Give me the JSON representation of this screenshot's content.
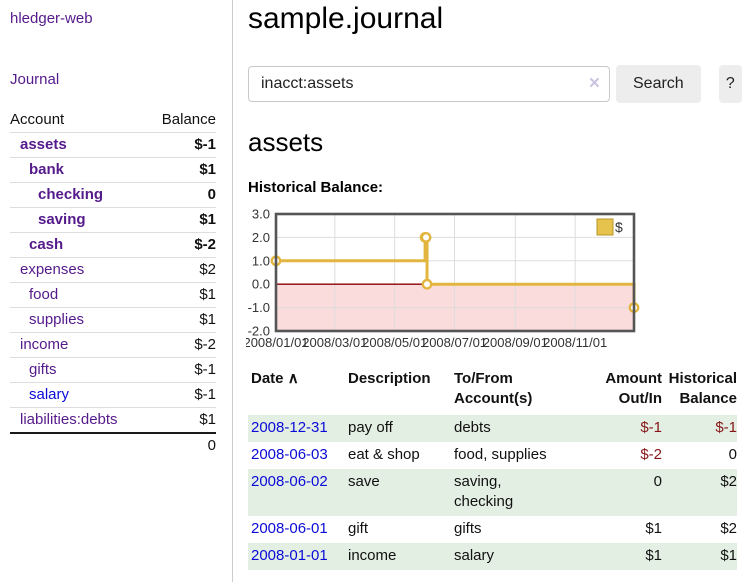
{
  "sidebar": {
    "brand": "hledger-web",
    "journal_link": "Journal",
    "accounts_table": {
      "headers": {
        "account": "Account",
        "balance": "Balance"
      },
      "rows": [
        {
          "name": "assets",
          "level": 1,
          "bold": true,
          "balance": "$-1",
          "balance_tone": "negative",
          "link_tone": "purple"
        },
        {
          "name": "bank",
          "level": 2,
          "bold": true,
          "balance": "$1",
          "balance_tone": "positive",
          "link_tone": "purple"
        },
        {
          "name": "checking",
          "level": 3,
          "bold": true,
          "balance": "0",
          "balance_tone": "positive",
          "link_tone": "purple"
        },
        {
          "name": "saving",
          "level": 3,
          "bold": true,
          "balance": "$1",
          "balance_tone": "positive",
          "link_tone": "purple"
        },
        {
          "name": "cash",
          "level": 2,
          "bold": true,
          "balance": "$-2",
          "balance_tone": "negative",
          "link_tone": "purple"
        },
        {
          "name": "expenses",
          "level": 1,
          "bold": false,
          "balance": "$2",
          "balance_tone": "positive",
          "link_tone": "purple"
        },
        {
          "name": "food",
          "level": 2,
          "bold": false,
          "balance": "$1",
          "balance_tone": "positive",
          "link_tone": "purple"
        },
        {
          "name": "supplies",
          "level": 2,
          "bold": false,
          "balance": "$1",
          "balance_tone": "positive",
          "link_tone": "purple"
        },
        {
          "name": "income",
          "level": 1,
          "bold": false,
          "balance": "$-2",
          "balance_tone": "negative-soft",
          "link_tone": "purple"
        },
        {
          "name": "gifts",
          "level": 2,
          "bold": false,
          "balance": "$-1",
          "balance_tone": "negative-soft",
          "link_tone": "purple"
        },
        {
          "name": "salary",
          "level": 2,
          "bold": false,
          "balance": "$-1",
          "balance_tone": "negative-soft",
          "link_tone": "blue"
        },
        {
          "name": "liabilities:debts",
          "level": 1,
          "bold": false,
          "balance": "$1",
          "balance_tone": "positive",
          "link_tone": "purple"
        }
      ],
      "total": "0"
    }
  },
  "header": {
    "title": "sample.journal"
  },
  "search": {
    "value": "inacct:assets",
    "clear_icon": "×",
    "button_label": "Search",
    "help_label": "?"
  },
  "account_page": {
    "title": "assets",
    "chart_heading": "Historical Balance:"
  },
  "chart_data": {
    "type": "line",
    "step": true,
    "series": [
      {
        "name": "$",
        "color": "#e2b63e",
        "points": [
          [
            "2008-01-01",
            1
          ],
          [
            "2008-06-01",
            2
          ],
          [
            "2008-06-02",
            2
          ],
          [
            "2008-06-03",
            0
          ],
          [
            "2008-12-31",
            -1
          ]
        ]
      }
    ],
    "x_range": [
      "2008-01-01",
      "2008-12-31"
    ],
    "x_ticks": [
      "2008/01/01",
      "2008/03/01",
      "2008/05/01",
      "2008/07/01",
      "2008/09/01",
      "2008/11/01"
    ],
    "y_ticks": [
      3.0,
      2.0,
      1.0,
      0.0,
      -1.0,
      -2.0
    ],
    "ylim": [
      -2,
      3
    ],
    "grid": true,
    "legend": {
      "label": "$",
      "position": "top-right",
      "swatch_color": "#e6c34c"
    },
    "negative_region_fill": "#fbdcdc",
    "zero_line_color": "#8b0000",
    "border_color": "#555555",
    "grid_color": "#dddddd"
  },
  "register_table": {
    "headers": {
      "date": "Date",
      "sort_icon": "∧",
      "description": "Description",
      "tofrom": "To/From\nAccount(s)",
      "amount": "Amount\nOut/In",
      "balance": "Historical\nBalance"
    },
    "rows": [
      {
        "date": "2008-12-31",
        "description": "pay off",
        "accounts": "debts",
        "amount": "$-1",
        "amount_tone": "negative",
        "balance": "$-1",
        "balance_tone": "negative",
        "striped": true
      },
      {
        "date": "2008-06-03",
        "description": "eat & shop",
        "accounts": "food, supplies",
        "amount": "$-2",
        "amount_tone": "negative",
        "balance": "0",
        "balance_tone": "positive",
        "striped": false
      },
      {
        "date": "2008-06-02",
        "description": "save",
        "accounts": "saving,\nchecking",
        "amount": "0",
        "amount_tone": "positive",
        "balance": "$2",
        "balance_tone": "positive",
        "striped": true
      },
      {
        "date": "2008-06-01",
        "description": "gift",
        "accounts": "gifts",
        "amount": "$1",
        "amount_tone": "positive",
        "balance": "$2",
        "balance_tone": "positive",
        "striped": false
      },
      {
        "date": "2008-01-01",
        "description": "income",
        "accounts": "salary",
        "amount": "$1",
        "amount_tone": "positive",
        "balance": "$1",
        "balance_tone": "positive",
        "striped": true
      }
    ]
  },
  "colors": {
    "link_purple": "#551a8b",
    "link_blue": "#0b0bd8",
    "negative": "#871717",
    "negative_soft": "#c06868",
    "stripe_green": "#e4efe4"
  }
}
